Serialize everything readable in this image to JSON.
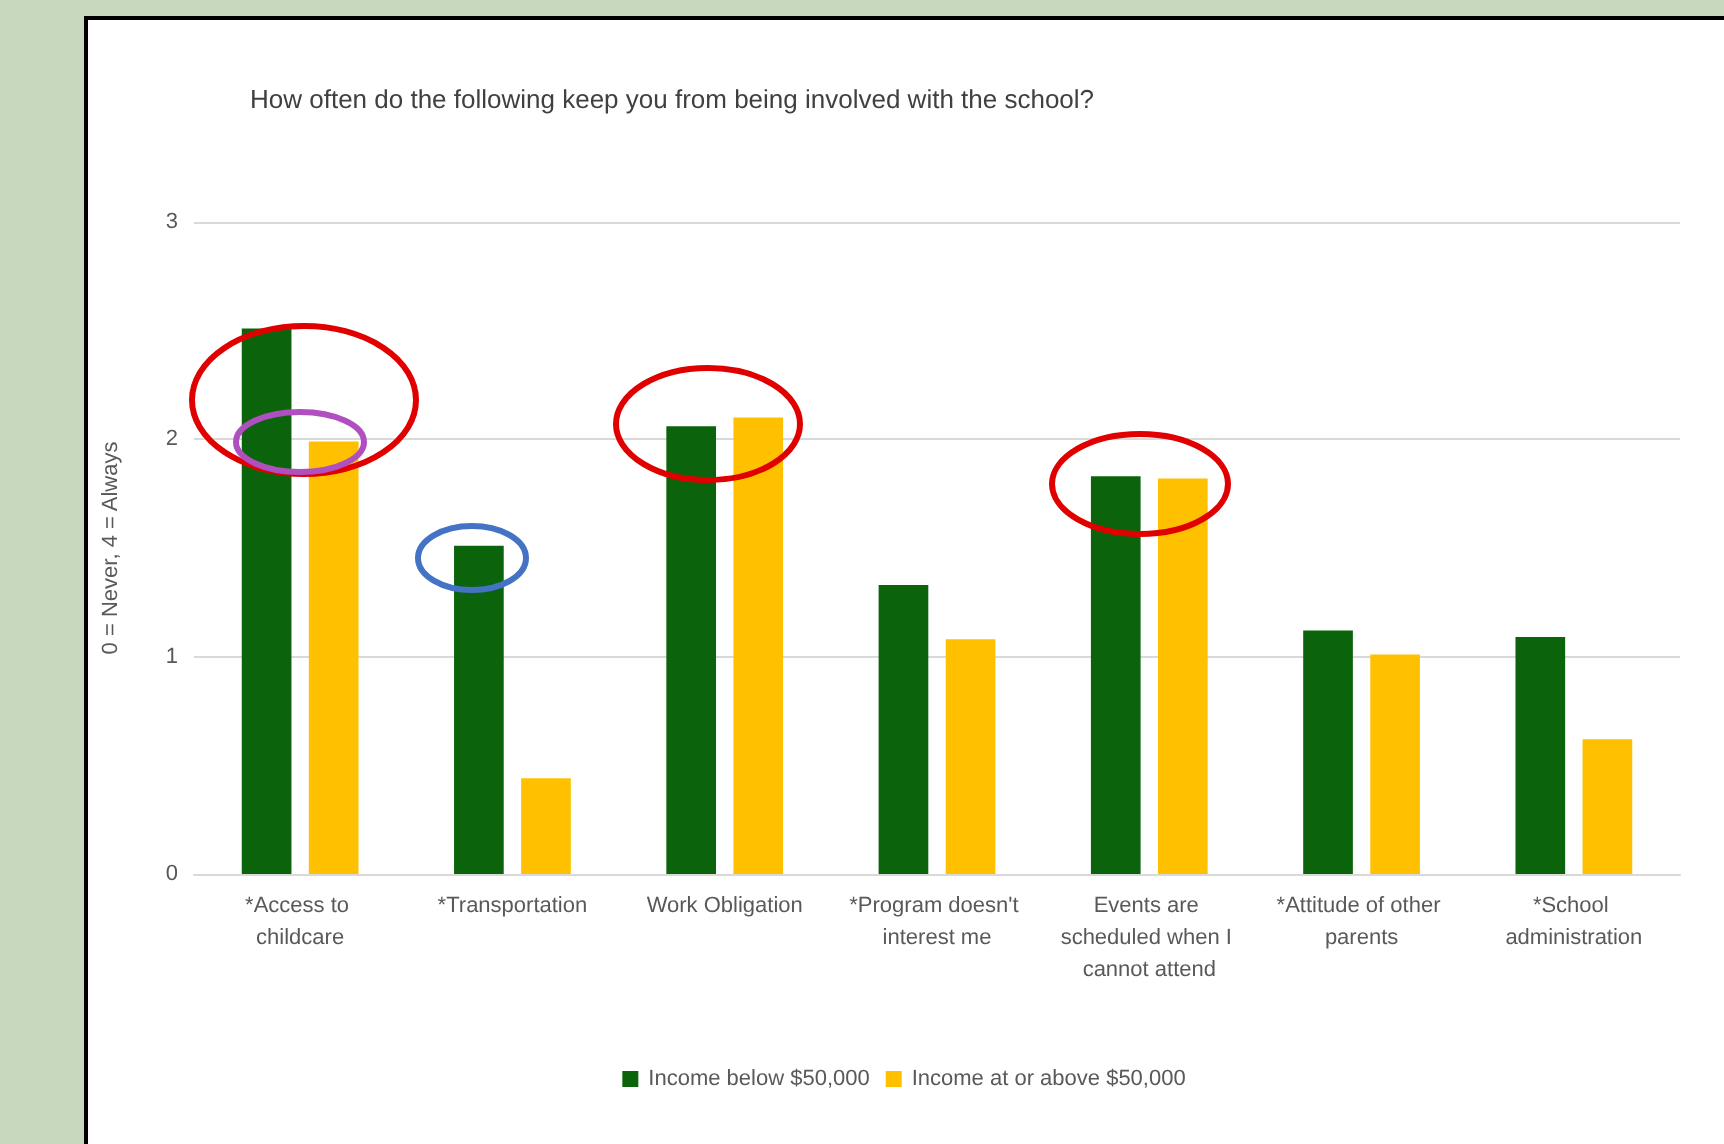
{
  "chart_data": {
    "type": "bar",
    "title": "How often do the following keep you from being involved with the school?",
    "ylabel": "0 = Never, 4 = Always",
    "categories": [
      "*Access to childcare",
      "*Transportation",
      "Work Obligation",
      "*Program doesn't interest me",
      "Events are scheduled when I cannot attend",
      "*Attitude of other parents",
      "*School administration"
    ],
    "series": [
      {
        "name": "Income below $50,000",
        "color": "#0b640b",
        "values": [
          2.51,
          1.51,
          2.06,
          1.33,
          1.83,
          1.12,
          1.09
        ]
      },
      {
        "name": "Income at or above $50,000",
        "color": "#ffc000",
        "values": [
          1.99,
          0.44,
          2.1,
          1.08,
          1.82,
          1.01,
          0.62
        ]
      }
    ],
    "ylim": [
      0,
      3
    ],
    "yticks": [
      0,
      1,
      2,
      3
    ],
    "grid": "y",
    "legend": "bottom"
  }
}
